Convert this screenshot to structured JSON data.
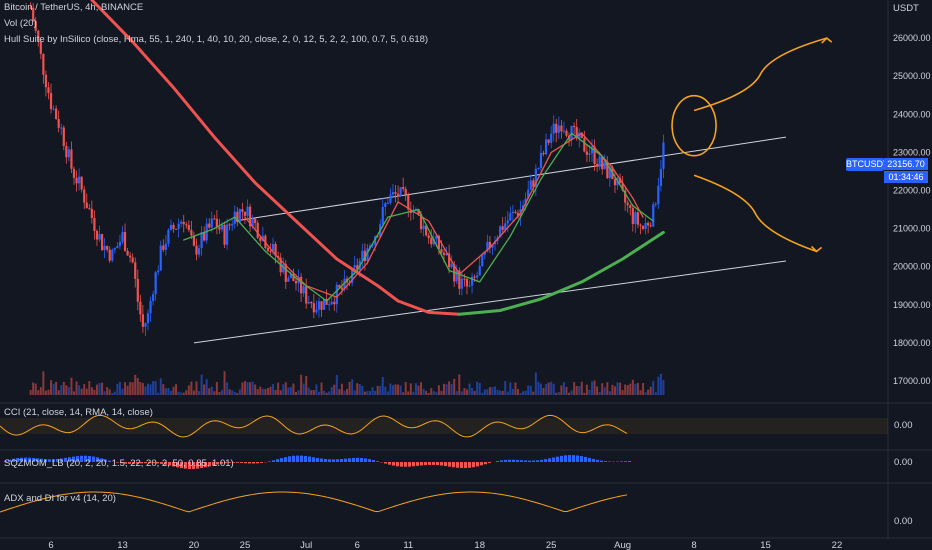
{
  "header": {
    "symbol_line": "Bitcoin / TetherUS, 4h, BINANCE",
    "vol_line": "Vol (20)",
    "hull_line": "Hull Suite by InSilico (close, Hma, 55, 1, 240, 1, 40, 10, 20, close, 2, 0, 12, 5, 2, 2, 100, 0.7, 5, 0.618)"
  },
  "price_badge": {
    "symbol": "BTCUSDT",
    "price": "23156.70",
    "countdown": "01:34:46"
  },
  "panels": {
    "cci": {
      "title": "CCI (21, close, 14, RMA, 14, close)",
      "axis_label": "0.00"
    },
    "sqz": {
      "title": "SQZMOM_LB (20, 2, 20, 1.5, 22, 20, 2, 50, 0.85, 1.01)",
      "axis_label": "0.00"
    },
    "adx": {
      "title": "ADX and DI for v4 (14, 20)",
      "axis_label": "0.00"
    }
  },
  "colors": {
    "background": "#131722",
    "up_candle": "#2962ff",
    "down_candle": "#ef5350",
    "hull_red": "#ef5350",
    "hull_green": "#4caf50",
    "channel": "#d1d4dc",
    "annotation": "#f7a21b",
    "badge": "#2962ff"
  },
  "chart_data": {
    "type": "line",
    "title": "Bitcoin / TetherUS, 4h, BINANCE",
    "price_axis": {
      "unit": "USDT",
      "ticks": [
        "26000.00",
        "25000.00",
        "24000.00",
        "23000.00",
        "22000.00",
        "21000.00",
        "20000.00",
        "19000.00",
        "18000.00",
        "17000.00"
      ],
      "ylim": [
        16500,
        27000
      ]
    },
    "time_axis": {
      "ticks": [
        "6",
        "13",
        "20",
        "25",
        "Jul",
        "6",
        "11",
        "18",
        "25",
        "Aug",
        "8",
        "15",
        "22"
      ],
      "tick_days": [
        6,
        13,
        20,
        25,
        31,
        36,
        41,
        48,
        55,
        62,
        69,
        76,
        83
      ],
      "xlim_days": [
        1,
        88
      ]
    },
    "close_path": [
      [
        4,
        26800
      ],
      [
        5,
        25500
      ],
      [
        6,
        24300
      ],
      [
        7,
        23600
      ],
      [
        8,
        22600
      ],
      [
        9,
        22000
      ],
      [
        10,
        21300
      ],
      [
        11,
        20600
      ],
      [
        12,
        20300
      ],
      [
        13,
        20800
      ],
      [
        14,
        20100
      ],
      [
        14.5,
        19100
      ],
      [
        15,
        18400
      ],
      [
        15.5,
        18700
      ],
      [
        16,
        19500
      ],
      [
        17,
        20600
      ],
      [
        18,
        21000
      ],
      [
        19,
        21300
      ],
      [
        20,
        20400
      ],
      [
        21,
        20800
      ],
      [
        22,
        21200
      ],
      [
        23,
        20800
      ],
      [
        24,
        21400
      ],
      [
        25,
        21500
      ],
      [
        26,
        21100
      ],
      [
        27,
        20700
      ],
      [
        28,
        20300
      ],
      [
        29,
        19800
      ],
      [
        30,
        19600
      ],
      [
        31,
        19200
      ],
      [
        32,
        19000
      ],
      [
        33,
        19100
      ],
      [
        34,
        19300
      ],
      [
        35,
        19500
      ],
      [
        36,
        20000
      ],
      [
        37,
        20500
      ],
      [
        38,
        21000
      ],
      [
        39,
        21800
      ],
      [
        40,
        21900
      ],
      [
        41,
        21700
      ],
      [
        42,
        21300
      ],
      [
        43,
        20800
      ],
      [
        44,
        20500
      ],
      [
        45,
        20100
      ],
      [
        46,
        19600
      ],
      [
        47,
        19400
      ],
      [
        48,
        19900
      ],
      [
        49,
        20600
      ],
      [
        50,
        21000
      ],
      [
        51,
        21300
      ],
      [
        52,
        21500
      ],
      [
        53,
        22100
      ],
      [
        54,
        22800
      ],
      [
        55,
        23500
      ],
      [
        56,
        23800
      ],
      [
        57,
        23500
      ],
      [
        58,
        23200
      ],
      [
        59,
        23000
      ],
      [
        60,
        22600
      ],
      [
        61,
        22400
      ],
      [
        62,
        21800
      ],
      [
        63,
        21300
      ],
      [
        64,
        21000
      ],
      [
        65,
        21400
      ],
      [
        66,
        23156.7
      ]
    ],
    "series": [
      {
        "name": "Hull MA (red)",
        "values": [
          [
            25,
            21300
          ],
          [
            28,
            20300
          ],
          [
            31,
            19500
          ],
          [
            34,
            19200
          ],
          [
            37,
            20100
          ],
          [
            40,
            21700
          ],
          [
            43,
            21200
          ],
          [
            46,
            19800
          ],
          [
            49,
            20500
          ],
          [
            52,
            21400
          ],
          [
            55,
            23000
          ],
          [
            58,
            23500
          ],
          [
            61,
            22600
          ],
          [
            63,
            21800
          ],
          [
            64,
            21300
          ]
        ]
      },
      {
        "name": "Hull MA (green)",
        "values": [
          [
            19,
            20700
          ],
          [
            22,
            21000
          ],
          [
            24,
            21300
          ],
          [
            27,
            20400
          ],
          [
            30,
            19700
          ],
          [
            33,
            19100
          ],
          [
            36,
            19900
          ],
          [
            39,
            21300
          ],
          [
            42,
            21500
          ],
          [
            45,
            19900
          ],
          [
            48,
            19600
          ],
          [
            51,
            20800
          ],
          [
            54,
            22300
          ],
          [
            57,
            23500
          ],
          [
            60,
            22900
          ],
          [
            63,
            21600
          ],
          [
            65,
            21200
          ]
        ]
      },
      {
        "name": "Long Hull (red)",
        "values": [
          [
            10,
            27000
          ],
          [
            14,
            25900
          ],
          [
            18,
            24700
          ],
          [
            22,
            23400
          ],
          [
            26,
            22200
          ],
          [
            30,
            21200
          ],
          [
            34,
            20200
          ],
          [
            38,
            19500
          ],
          [
            40,
            19100
          ],
          [
            43,
            18800
          ],
          [
            46,
            18750
          ]
        ]
      },
      {
        "name": "Long Hull (green)",
        "values": [
          [
            46,
            18750
          ],
          [
            50,
            18850
          ],
          [
            54,
            19150
          ],
          [
            58,
            19600
          ],
          [
            62,
            20200
          ],
          [
            66,
            20900
          ]
        ]
      }
    ],
    "channel": {
      "upper": [
        [
          24,
          21200
        ],
        [
          78,
          23400
        ]
      ],
      "lower": [
        [
          20,
          18000
        ],
        [
          78,
          20150
        ]
      ]
    },
    "annotations": [
      {
        "type": "ellipse",
        "center": [
          69,
          23700
        ]
      },
      {
        "type": "arrow-up",
        "from": [
          69,
          24100
        ],
        "to": [
          82,
          26000
        ]
      },
      {
        "type": "arrow-down",
        "from": [
          69,
          22400
        ],
        "to": [
          81,
          20400
        ]
      }
    ]
  }
}
